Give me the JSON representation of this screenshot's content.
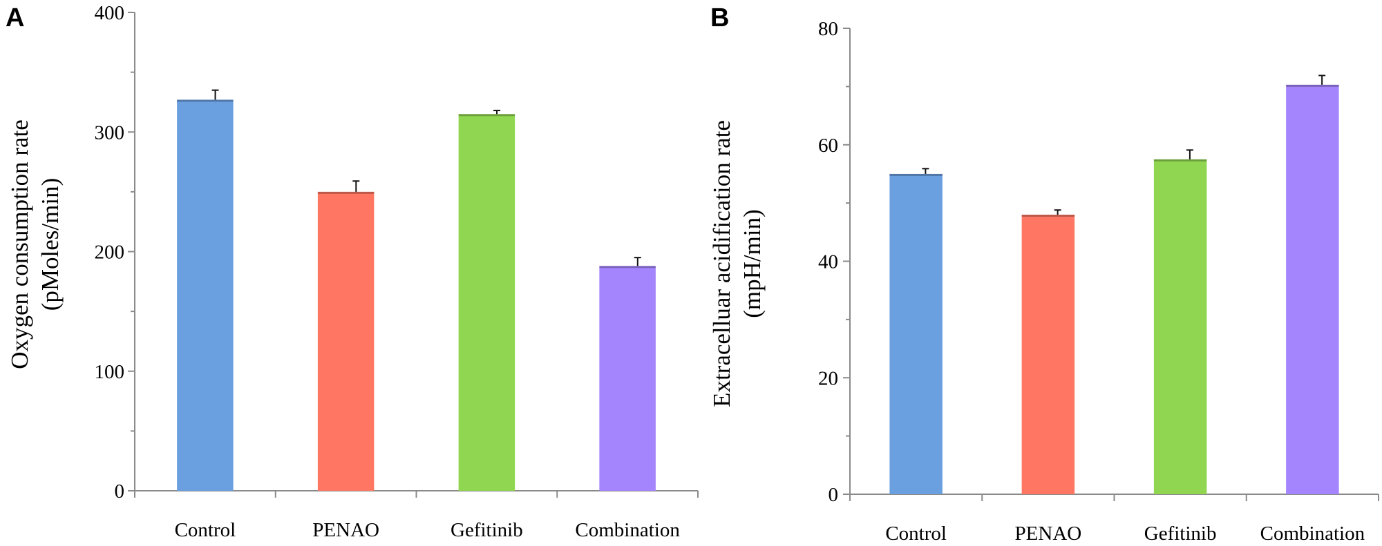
{
  "chart_data": [
    {
      "type": "bar",
      "panel": "A",
      "categories": [
        "Control",
        "PENAO",
        "Gefitinib",
        "Combination"
      ],
      "values": [
        327,
        250,
        315,
        188
      ],
      "errors": [
        8,
        9,
        3,
        7
      ],
      "colors": [
        "#6aa0e0",
        "#ff7763",
        "#90d650",
        "#a585fd"
      ],
      "ylabel_line1": "Oxygen consumption rate",
      "ylabel_line2": "(pMoles/min)",
      "ylim": [
        0,
        400
      ],
      "yticks": [
        0,
        100,
        200,
        300,
        400
      ],
      "grid": false,
      "legend": "none"
    },
    {
      "type": "bar",
      "panel": "B",
      "categories": [
        "Control",
        "PENAO",
        "Gefitinib",
        "Combination"
      ],
      "values": [
        55,
        48,
        57.5,
        70.3
      ],
      "errors": [
        0.9,
        0.8,
        1.6,
        1.6
      ],
      "colors": [
        "#6aa0e0",
        "#ff7763",
        "#90d650",
        "#a585fd"
      ],
      "ylabel_line1": "Extracelluar acidification rate",
      "ylabel_line2": "(mpH/min)",
      "ylim": [
        0,
        80
      ],
      "yticks": [
        0,
        20,
        40,
        60,
        80
      ],
      "grid": false,
      "legend": "none"
    }
  ]
}
